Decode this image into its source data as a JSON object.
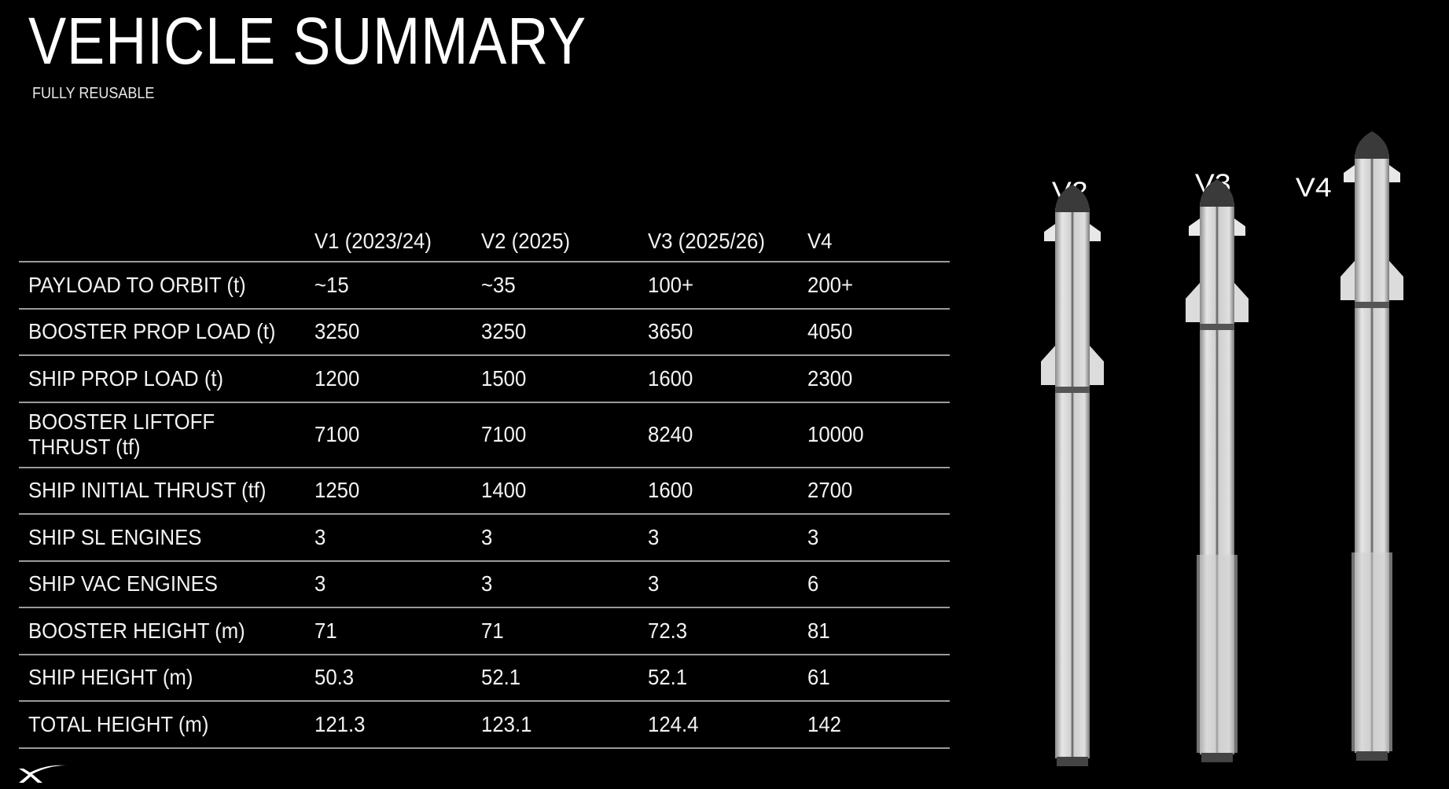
{
  "header": {
    "title": "VEHICLE SUMMARY",
    "subtitle": "FULLY REUSABLE"
  },
  "table": {
    "columns": [
      "",
      "V1 (2023/24)",
      "V2 (2025)",
      "V3 (2025/26)",
      "V4"
    ],
    "rows": [
      [
        "PAYLOAD TO ORBIT (t)",
        "~15",
        "~35",
        "100+",
        "200+"
      ],
      [
        "BOOSTER PROP LOAD (t)",
        "3250",
        "3250",
        "3650",
        "4050"
      ],
      [
        "SHIP PROP LOAD (t)",
        "1200",
        "1500",
        "1600",
        "2300"
      ],
      [
        "BOOSTER LIFTOFF THRUST (tf)",
        "7100",
        "7100",
        "8240",
        "10000"
      ],
      [
        "SHIP INITIAL THRUST (tf)",
        "1250",
        "1400",
        "1600",
        "2700"
      ],
      [
        "SHIP SL ENGINES",
        "3",
        "3",
        "3",
        "3"
      ],
      [
        "SHIP VAC ENGINES",
        "3",
        "3",
        "3",
        "6"
      ],
      [
        "BOOSTER HEIGHT  (m)",
        "71",
        "71",
        "72.3",
        "81"
      ],
      [
        "SHIP HEIGHT  (m)",
        "50.3",
        "52.1",
        "52.1",
        "61"
      ],
      [
        "TOTAL HEIGHT (m)",
        "121.3",
        "123.1",
        "124.4",
        "142"
      ]
    ],
    "row_label_split": {
      "3": [
        "BOOSTER LIFTOFF",
        "THRUST (tf)"
      ]
    }
  },
  "illustration": {
    "labels": [
      "V2",
      "V3",
      "V4"
    ]
  },
  "logo": {
    "name": "spacex-x-logo",
    "text": "X"
  },
  "colors": {
    "background": "#000000",
    "text": "#ffffff",
    "rule": "#9a9a9a",
    "steel": "#c8c8c8"
  }
}
